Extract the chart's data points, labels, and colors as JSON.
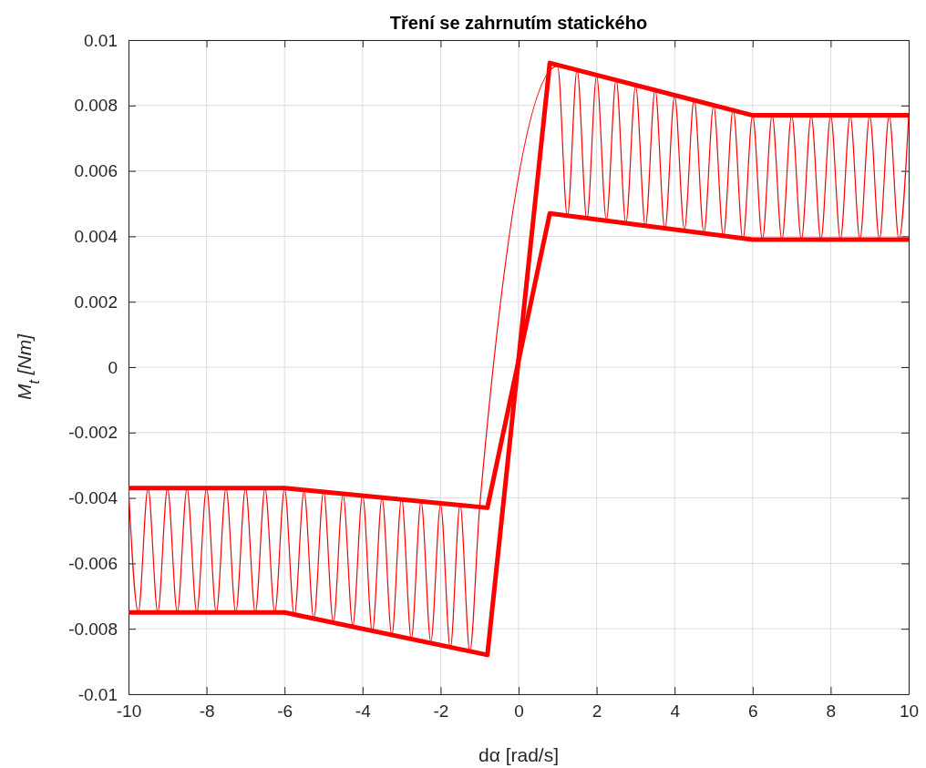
{
  "chart_data": {
    "type": "line",
    "title": "Tření se zahrnutím statického",
    "xlabel": "dα [rad/s]",
    "ylabel": "M$_{t}$ [Nm]",
    "xlim": [
      -10,
      10
    ],
    "xticks": [
      -10,
      -8,
      -6,
      -4,
      -2,
      0,
      2,
      4,
      6,
      8,
      10
    ],
    "ylim": [
      -0.01,
      0.01
    ],
    "yticks": [
      -0.01,
      -0.008,
      -0.006,
      -0.004,
      -0.002,
      0,
      0.002,
      0.004,
      0.006,
      0.008,
      0.01
    ],
    "grid": true,
    "marker": "none",
    "series": [
      {
        "color": "#ff0000",
        "x": [
          -10,
          -6,
          -0.8,
          0.8,
          6,
          10
        ],
        "values": [
          -0.0075,
          -0.0075,
          -0.0088,
          0.0093,
          0.0077,
          0.0077
        ]
      },
      {
        "color": "#ff0000",
        "x": [
          -10,
          -6,
          -0.8,
          0.8,
          6,
          10
        ],
        "values": [
          -0.0037,
          -0.0037,
          -0.0043,
          0.0047,
          0.0039,
          0.0039
        ]
      },
      {
        "color": "#ff0000",
        "x": [
          -10,
          -9.75,
          -9.5,
          -9.25,
          -9,
          -8.75,
          -8.5,
          -8.25,
          -8,
          -7.75,
          -7.5,
          -7.25,
          -7,
          -6.75,
          -6.5,
          -6.25,
          -6,
          -5.75,
          -5.5,
          -5.25,
          -5,
          -4.75,
          -4.5,
          -4.25,
          -4,
          -3.75,
          -3.5,
          -3.25,
          -3,
          -2.75,
          -2.5,
          -2.25,
          -2,
          -1.75,
          -1.5,
          -1.25,
          -1,
          1,
          1.25,
          1.5,
          1.75,
          2,
          2.25,
          2.5,
          2.75,
          3,
          3.25,
          3.5,
          3.75,
          4,
          4.25,
          4.5,
          4.75,
          5,
          5.25,
          5.5,
          5.75,
          6,
          6.25,
          6.5,
          6.75,
          7,
          7.25,
          7.5,
          7.75,
          8,
          8.25,
          8.5,
          8.75,
          9,
          9.25,
          9.5,
          9.75,
          10
        ],
        "values": [
          -0.0037,
          -0.0075,
          -0.0037,
          -0.0075,
          -0.0037,
          -0.0075,
          -0.0037,
          -0.0075,
          -0.0037,
          -0.0075,
          -0.0037,
          -0.0075,
          -0.0037,
          -0.0075,
          -0.0037,
          -0.0075,
          -0.0037,
          -0.0076,
          -0.0038,
          -0.0077,
          -0.0038,
          -0.0078,
          -0.0039,
          -0.0079,
          -0.0039,
          -0.0081,
          -0.004,
          -0.0082,
          -0.004,
          -0.0083,
          -0.0041,
          -0.0084,
          -0.0042,
          -0.0086,
          -0.0042,
          -0.0087,
          -0.0043,
          0.0092,
          0.0046,
          0.0091,
          0.0045,
          0.0089,
          0.0045,
          0.0088,
          0.0044,
          0.0086,
          0.0043,
          0.0085,
          0.0042,
          0.0083,
          0.0042,
          0.0082,
          0.0041,
          0.008,
          0.004,
          0.0079,
          0.0039,
          0.0077,
          0.0039,
          0.0077,
          0.0039,
          0.0077,
          0.0039,
          0.0077,
          0.0039,
          0.0077,
          0.0039,
          0.0077,
          0.0039,
          0.0077,
          0.0039,
          0.0077,
          0.0039,
          0.0077
        ]
      }
    ]
  }
}
